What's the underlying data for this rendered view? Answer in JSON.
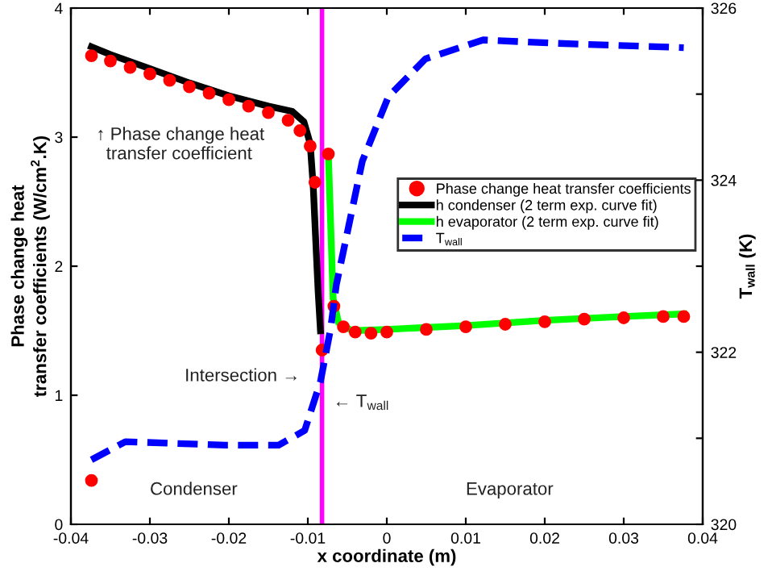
{
  "chart_data": {
    "type": "scatter",
    "xlabel": "x coordinate (m)",
    "ylabel": "Phase change heat\ntransfer coefficients (W/cm$^{2}$.K)",
    "y2label": "T$_{wall}$ (K)",
    "xlim": [
      -0.04,
      0.04
    ],
    "xticks": [
      -0.04,
      -0.03,
      -0.02,
      -0.01,
      0,
      0.01,
      0.02,
      0.03,
      0.04
    ],
    "ylim": [
      0,
      4
    ],
    "yticks": [
      0,
      1,
      2,
      3,
      4
    ],
    "y2lim": [
      320,
      326
    ],
    "y2ticks": [
      320,
      {
        "value": 321,
        "label": null
      },
      322,
      {
        "value": 323,
        "label": null
      },
      324,
      {
        "value": 325,
        "label": null
      },
      326
    ],
    "legend": "right",
    "grid": false,
    "series": [
      {
        "name": "Phase change heat transfer coefficients",
        "marker": "circle",
        "color": "#ff0000",
        "x": [
          -0.0374,
          -0.0374,
          -0.035,
          -0.0325,
          -0.03,
          -0.0275,
          -0.025,
          -0.0225,
          -0.02,
          -0.0175,
          -0.015,
          -0.0125,
          -0.011,
          -0.0097,
          -0.0091,
          -0.0082,
          -0.0074,
          -0.0067,
          -0.0055,
          -0.004,
          -0.002,
          0,
          0.005,
          0.01,
          0.015,
          0.02,
          0.025,
          0.03,
          0.035,
          0.0376
        ],
        "values": [
          0.34,
          3.63,
          3.59,
          3.54,
          3.49,
          3.44,
          3.39,
          3.34,
          3.29,
          3.24,
          3.19,
          3.13,
          3.05,
          2.93,
          2.65,
          1.35,
          2.87,
          1.69,
          1.53,
          1.49,
          1.48,
          1.49,
          1.51,
          1.53,
          1.55,
          1.57,
          1.59,
          1.6,
          1.61,
          1.61
        ]
      },
      {
        "name": "h condenser (2 term exp. curve fit)",
        "type": "line",
        "line_style": "solid",
        "color": "#000000",
        "x": [
          -0.0374,
          -0.035,
          -0.03,
          -0.025,
          -0.02,
          -0.015,
          -0.012,
          -0.0105,
          -0.0097,
          -0.0093,
          -0.009,
          -0.0087,
          -0.0084
        ],
        "values": [
          3.7,
          3.64,
          3.53,
          3.42,
          3.32,
          3.24,
          3.2,
          3.12,
          2.95,
          2.6,
          2.2,
          1.81,
          1.5
        ]
      },
      {
        "name": "h evaporator (2 term exp. curve fit)",
        "type": "line",
        "line_style": "solid",
        "color": "#00ff00",
        "x": [
          -0.0074,
          -0.0068,
          -0.0061,
          -0.0044,
          0,
          0.01,
          0.02,
          0.03,
          0.0376
        ],
        "values": [
          2.87,
          1.75,
          1.56,
          1.5,
          1.51,
          1.54,
          1.58,
          1.61,
          1.63
        ]
      },
      {
        "name": "T$_{wall}$",
        "type": "line",
        "axis": "y2",
        "line_style": "dashed",
        "color": "#0000ff",
        "x": [
          -0.0374,
          -0.0331,
          -0.0204,
          -0.0137,
          -0.0104,
          -0.0084,
          -0.0071,
          -0.0064,
          -0.0031,
          0.0002,
          0.0049,
          0.0122,
          0.0216,
          0.0376
        ],
        "values": [
          320.75,
          320.96,
          320.92,
          320.92,
          321.09,
          321.66,
          322.28,
          322.78,
          324.22,
          324.97,
          325.41,
          325.63,
          325.59,
          325.54
        ]
      }
    ],
    "ref_lines": [
      {
        "axis": "x",
        "value": -0.0082,
        "color": "#ff00ff",
        "line_style": "solid"
      }
    ],
    "annotations": [
      "↑ Phase change heat\n  transfer coefficient",
      "Intersection →",
      "← T$_{wall}$",
      "Condenser",
      "Evaporator"
    ]
  }
}
